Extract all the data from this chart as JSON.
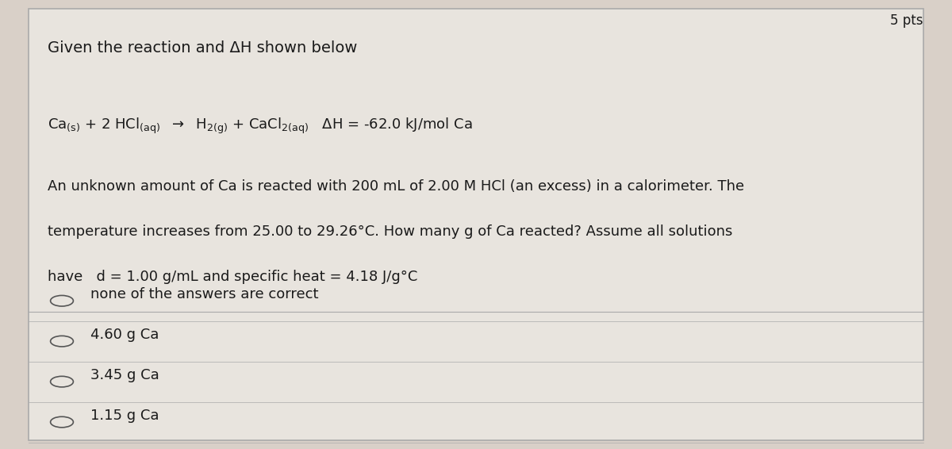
{
  "background_color": "#d9d0c8",
  "panel_color": "#e8e4de",
  "title_text": "Given the reaction and ΔH shown below",
  "top_right_text": "5 pts",
  "options": [
    "none of the answers are correct",
    "4.60 g Ca",
    "3.45 g Ca",
    "1.15 g Ca"
  ],
  "text_color": "#1a1a1a",
  "line_color": "#aaaaaa",
  "font_size_title": 14,
  "font_size_reaction": 13,
  "font_size_problem": 13,
  "font_size_options": 13
}
